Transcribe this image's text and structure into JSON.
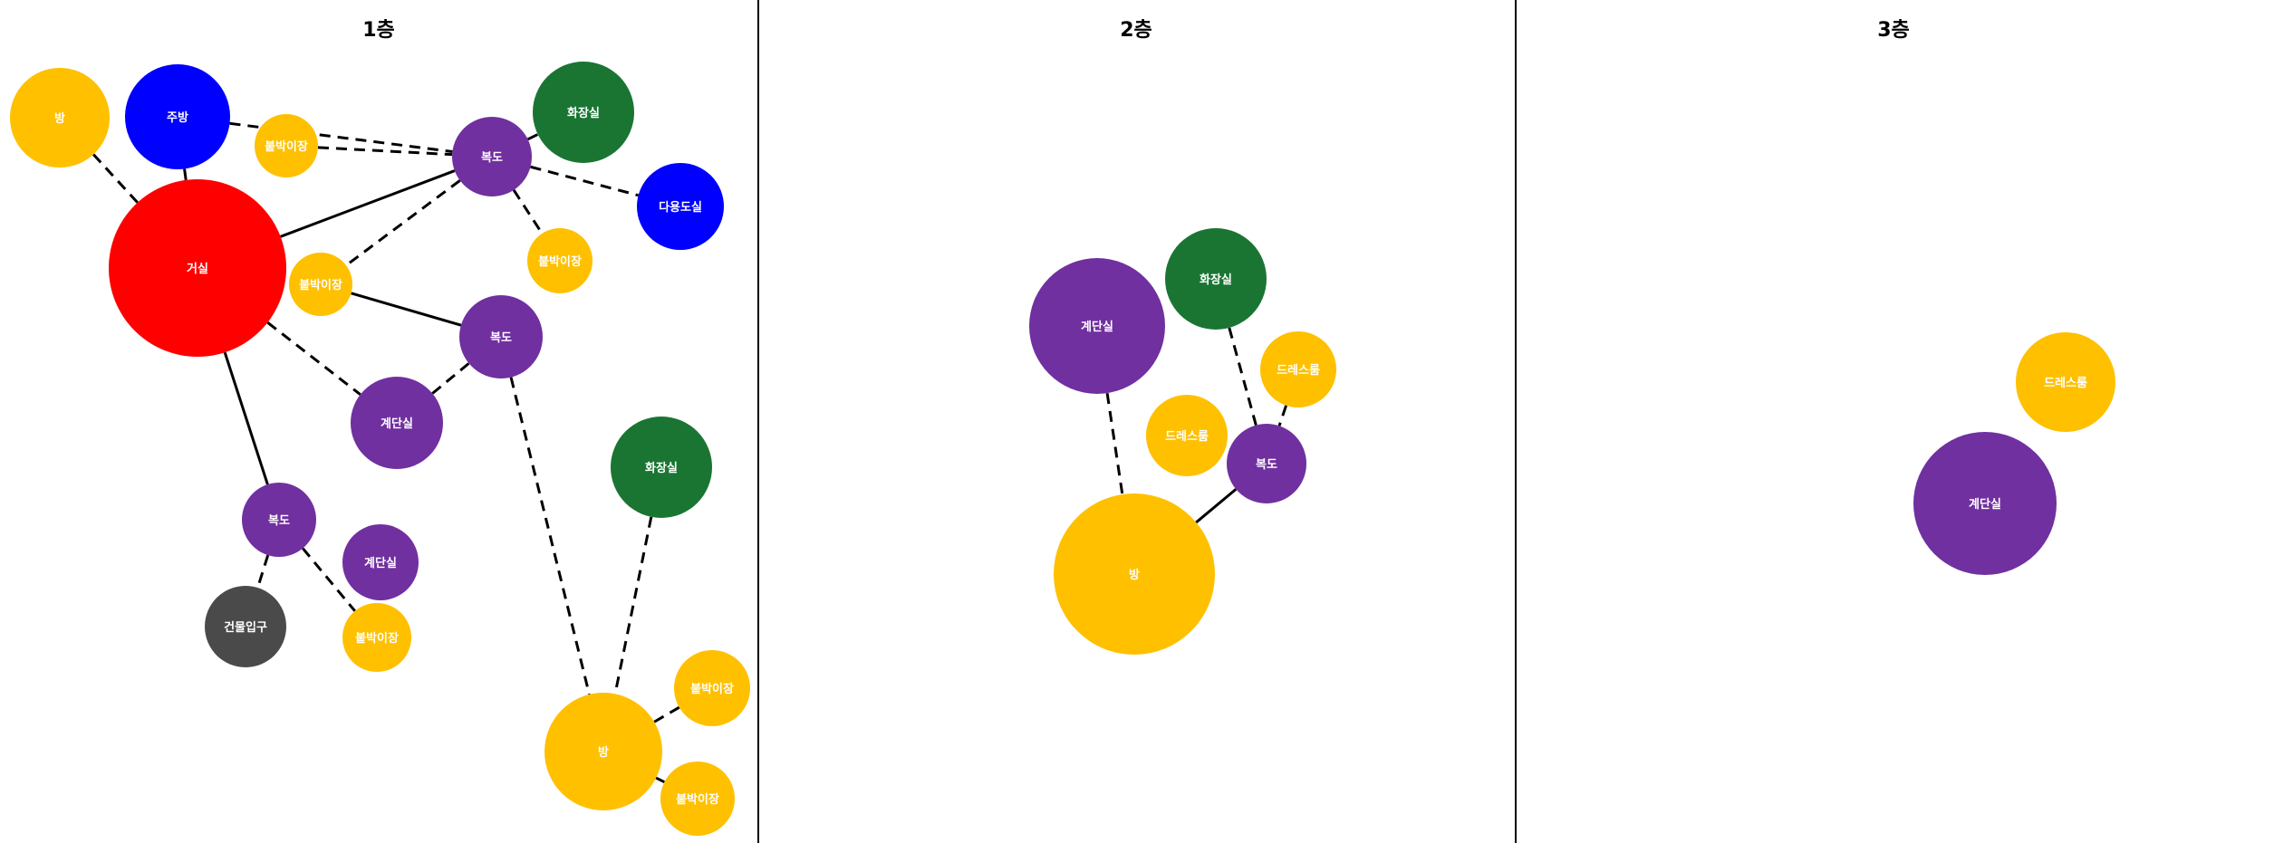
{
  "colors": {
    "living": "#ff0000",
    "kitchen_util": "#0000ff",
    "room_storage": "#ffc000",
    "corridor_stairs": "#7030a0",
    "bathroom": "#1a7533",
    "entrance": "#4a4a4a",
    "edge": "#000000"
  },
  "panels": [
    {
      "title": "1층",
      "nodes": [
        {
          "id": "p1-room-a",
          "label": "방",
          "color": "#ffc000"
        },
        {
          "id": "p1-kitchen",
          "label": "주방",
          "color": "#0000ff"
        },
        {
          "id": "p1-closet-a",
          "label": "붙박이장",
          "color": "#ffc000"
        },
        {
          "id": "p1-corridor-a",
          "label": "복도",
          "color": "#7030a0"
        },
        {
          "id": "p1-bath-a",
          "label": "화장실",
          "color": "#1a7533"
        },
        {
          "id": "p1-utility",
          "label": "다용도실",
          "color": "#0000ff"
        },
        {
          "id": "p1-living",
          "label": "거실",
          "color": "#ff0000"
        },
        {
          "id": "p1-closet-b",
          "label": "붙박이장",
          "color": "#ffc000"
        },
        {
          "id": "p1-closet-c",
          "label": "붙박이장",
          "color": "#ffc000"
        },
        {
          "id": "p1-corridor-b",
          "label": "복도",
          "color": "#7030a0"
        },
        {
          "id": "p1-stairs-a",
          "label": "계단실",
          "color": "#7030a0"
        },
        {
          "id": "p1-bath-b",
          "label": "화장실",
          "color": "#1a7533"
        },
        {
          "id": "p1-corridor-c",
          "label": "복도",
          "color": "#7030a0"
        },
        {
          "id": "p1-stairs-b",
          "label": "계단실",
          "color": "#7030a0"
        },
        {
          "id": "p1-entrance",
          "label": "건물입구",
          "color": "#4a4a4a"
        },
        {
          "id": "p1-closet-d",
          "label": "붙박이장",
          "color": "#ffc000"
        },
        {
          "id": "p1-closet-e",
          "label": "붙박이장",
          "color": "#ffc000"
        },
        {
          "id": "p1-room-b",
          "label": "방",
          "color": "#ffc000"
        },
        {
          "id": "p1-closet-f",
          "label": "붙박이장",
          "color": "#ffc000"
        }
      ],
      "edges": [
        {
          "from": "p1-room-a",
          "to": "p1-living",
          "style": "dashed"
        },
        {
          "from": "p1-kitchen",
          "to": "p1-living",
          "style": "solid"
        },
        {
          "from": "p1-kitchen",
          "to": "p1-corridor-a",
          "style": "dashed"
        },
        {
          "from": "p1-closet-a",
          "to": "p1-corridor-a",
          "style": "dashed"
        },
        {
          "from": "p1-living",
          "to": "p1-corridor-a",
          "style": "solid"
        },
        {
          "from": "p1-corridor-a",
          "to": "p1-bath-a",
          "style": "dashed"
        },
        {
          "from": "p1-corridor-a",
          "to": "p1-utility",
          "style": "dashed"
        },
        {
          "from": "p1-corridor-a",
          "to": "p1-closet-c",
          "style": "dashed"
        },
        {
          "from": "p1-corridor-a",
          "to": "p1-closet-b",
          "style": "dashed"
        },
        {
          "from": "p1-closet-b",
          "to": "p1-corridor-b",
          "style": "solid"
        },
        {
          "from": "p1-living",
          "to": "p1-stairs-a",
          "style": "dashed"
        },
        {
          "from": "p1-stairs-a",
          "to": "p1-corridor-b",
          "style": "dashed"
        },
        {
          "from": "p1-living",
          "to": "p1-corridor-c",
          "style": "solid"
        },
        {
          "from": "p1-corridor-c",
          "to": "p1-entrance",
          "style": "dashed"
        },
        {
          "from": "p1-corridor-c",
          "to": "p1-closet-d",
          "style": "dashed"
        },
        {
          "from": "p1-corridor-b",
          "to": "p1-room-b",
          "style": "dashed"
        },
        {
          "from": "p1-bath-b",
          "to": "p1-room-b",
          "style": "dashed"
        },
        {
          "from": "p1-room-b",
          "to": "p1-closet-e",
          "style": "dashed"
        },
        {
          "from": "p1-room-b",
          "to": "p1-closet-f",
          "style": "dashed"
        }
      ]
    },
    {
      "title": "2층",
      "nodes": [
        {
          "id": "p2-stairs",
          "label": "계단실",
          "color": "#7030a0"
        },
        {
          "id": "p2-bath",
          "label": "화장실",
          "color": "#1a7533"
        },
        {
          "id": "p2-dress-a",
          "label": "드레스룸",
          "color": "#ffc000"
        },
        {
          "id": "p2-dress-b",
          "label": "드레스룸",
          "color": "#ffc000"
        },
        {
          "id": "p2-corridor",
          "label": "복도",
          "color": "#7030a0"
        },
        {
          "id": "p2-room",
          "label": "방",
          "color": "#ffc000"
        }
      ],
      "edges": [
        {
          "from": "p2-stairs",
          "to": "p2-room",
          "style": "dashed"
        },
        {
          "from": "p2-bath",
          "to": "p2-corridor",
          "style": "dashed"
        },
        {
          "from": "p2-dress-a",
          "to": "p2-corridor",
          "style": "dashed"
        },
        {
          "from": "p2-corridor",
          "to": "p2-room",
          "style": "solid"
        }
      ]
    },
    {
      "title": "3층",
      "nodes": [
        {
          "id": "p3-dress",
          "label": "드레스룸",
          "color": "#ffc000"
        },
        {
          "id": "p3-stairs",
          "label": "계단실",
          "color": "#7030a0"
        }
      ],
      "edges": []
    }
  ]
}
